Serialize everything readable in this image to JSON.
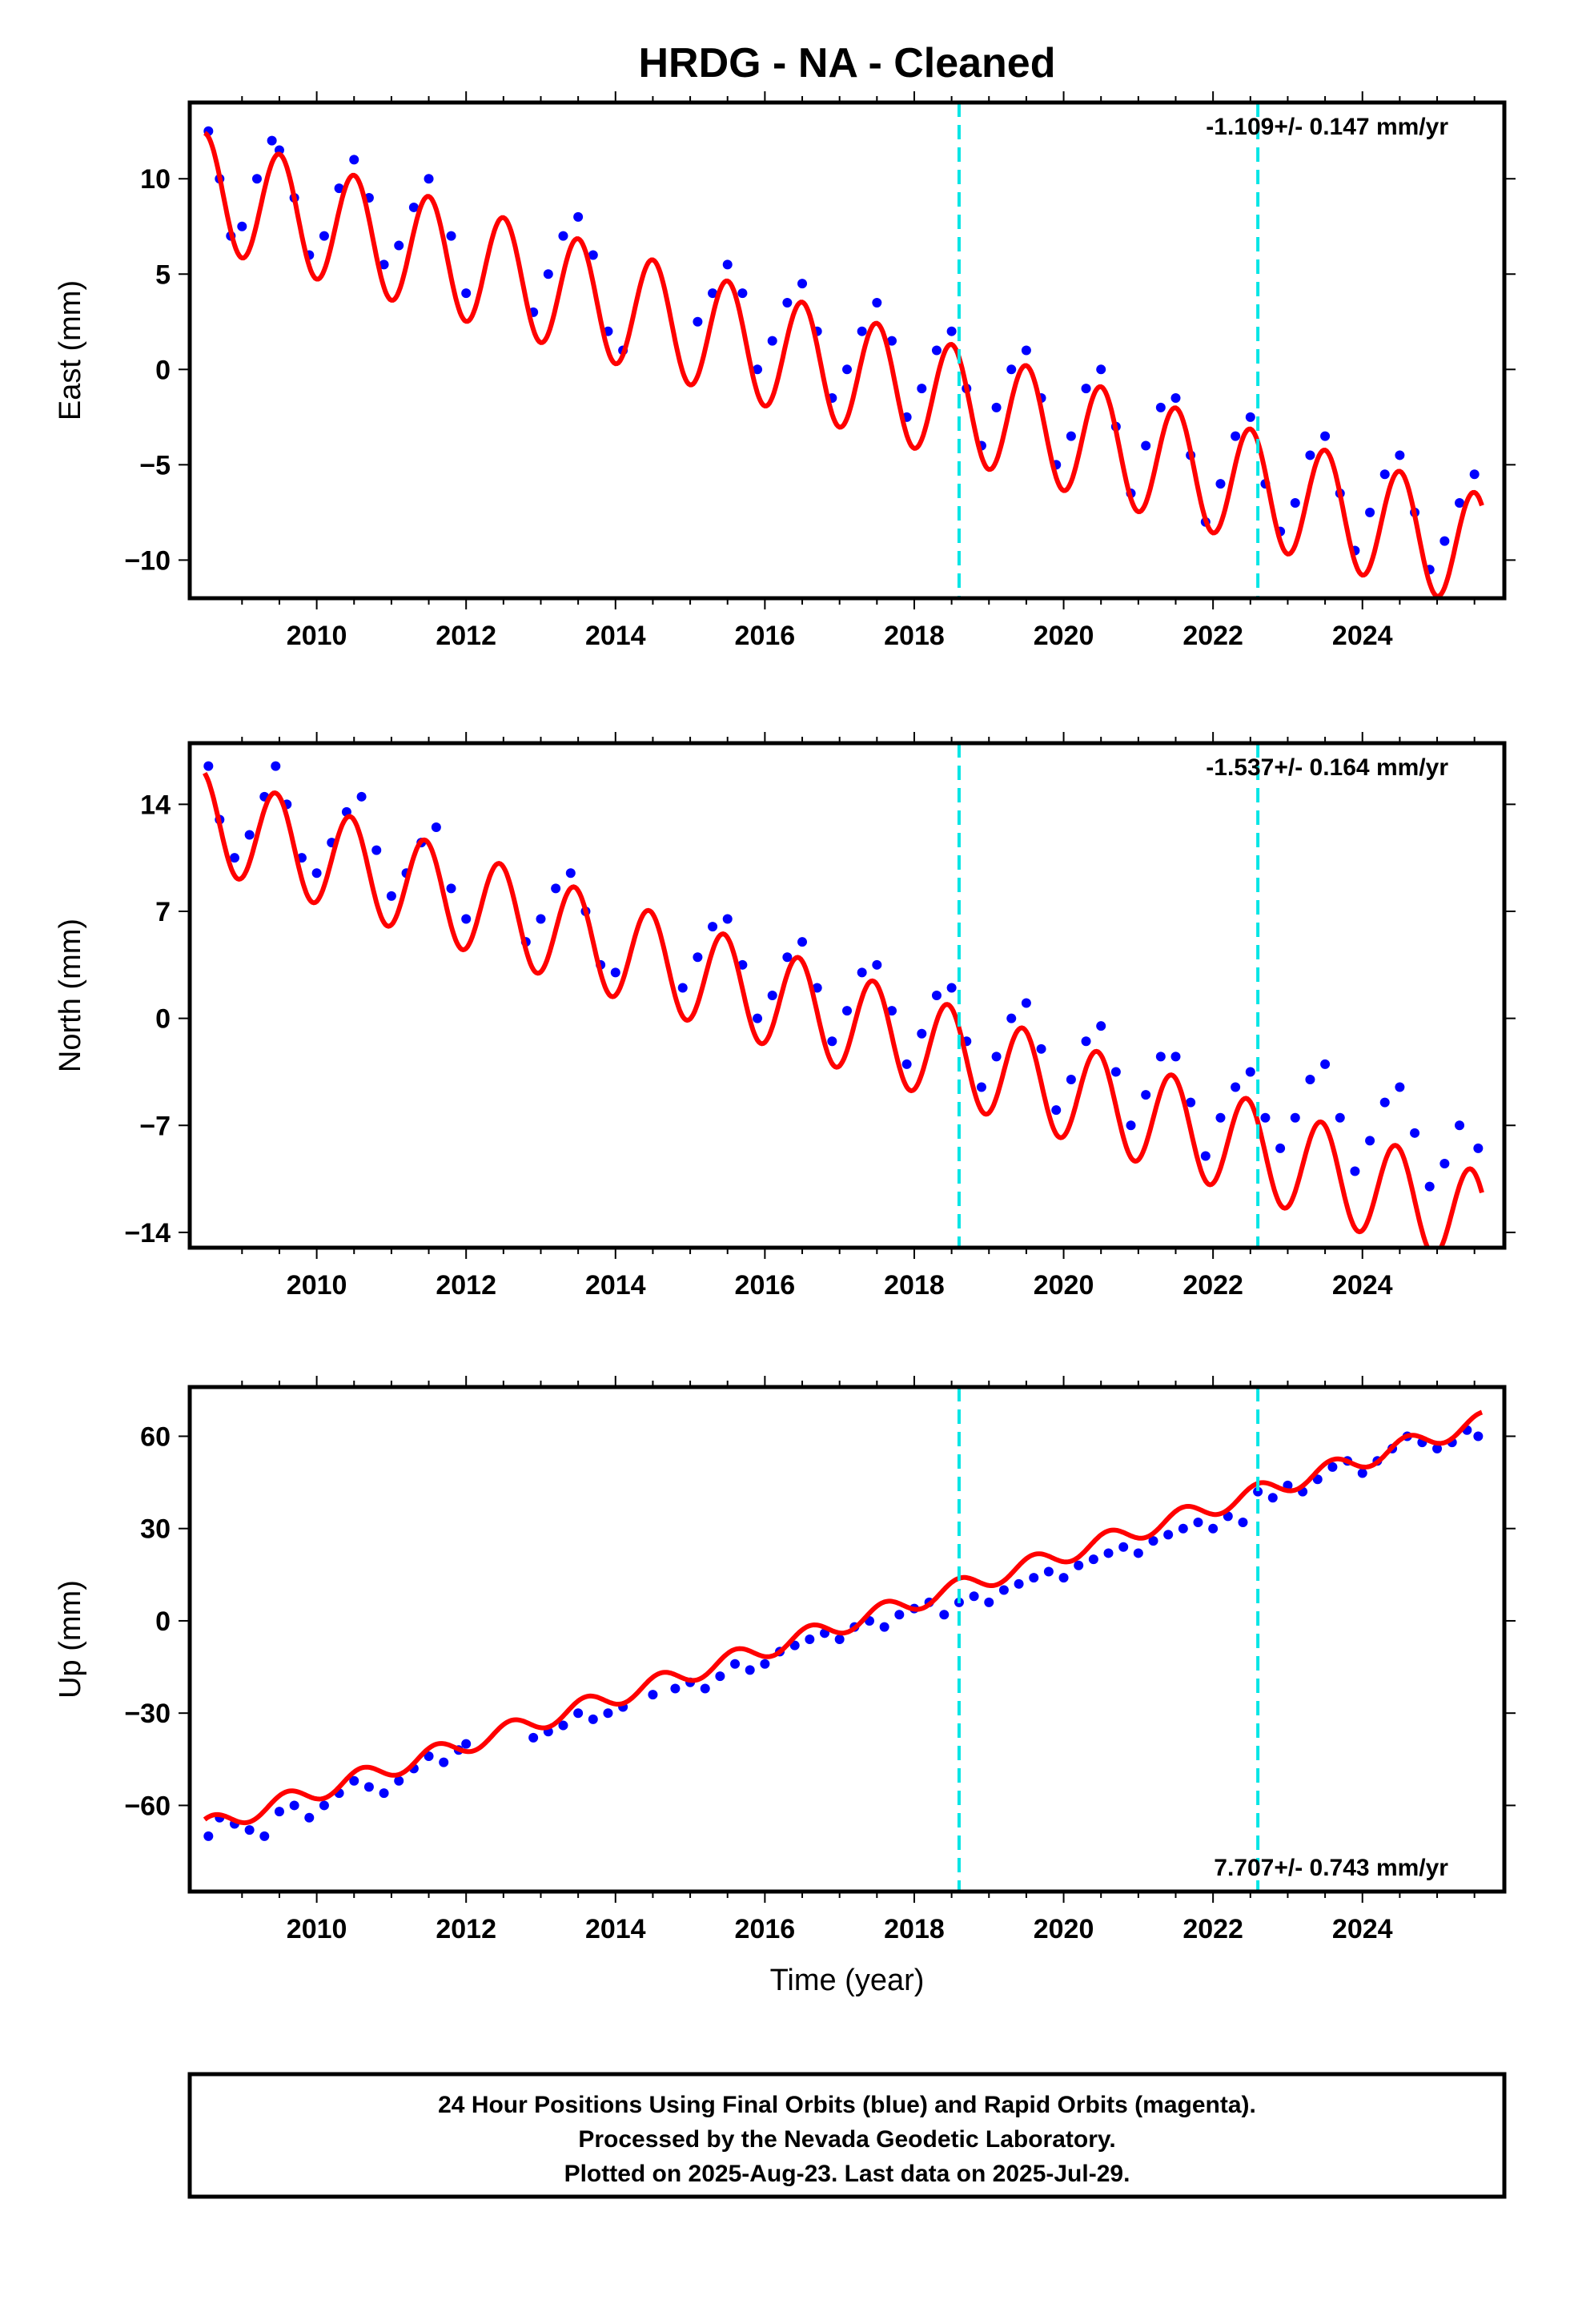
{
  "figure": {
    "title": "HRDG  - NA - Cleaned",
    "xlabel": "Time (year)"
  },
  "footer": {
    "lines": [
      "24 Hour Positions Using Final Orbits (blue) and Rapid Orbits (magenta).",
      "Processed by the Nevada Geodetic Laboratory.",
      "Plotted on 2025-Aug-23. Last data on 2025-Jul-29."
    ]
  },
  "chart_data": [
    {
      "type": "scatter",
      "component": "east",
      "ylabel": "East (mm)",
      "rate_label": "-1.109+/- 0.147 mm/yr",
      "rate_position": "top-right",
      "xlim": [
        2008.3,
        2025.9
      ],
      "ylim": [
        -12,
        14
      ],
      "xticks": [
        2010,
        2012,
        2014,
        2016,
        2018,
        2020,
        2022,
        2024
      ],
      "yticks": [
        -10,
        -5,
        0,
        5,
        10
      ],
      "ytick_labels": [
        "−10",
        "−5",
        "0",
        "5",
        "10"
      ],
      "grid": false,
      "breaks": [
        2018.6,
        2022.6
      ],
      "colors": {
        "observations": "#0000ff",
        "model": "#ff0000",
        "breaks": "#00e5e5"
      },
      "model": {
        "intercept_at_2008_5": 9.4,
        "rate_mm_per_yr": -1.109,
        "annual_amplitude": 3.0,
        "phase_year_peak": 0.5
      },
      "series": [
        {
          "role": "observations",
          "x": [
            2008.55,
            2008.7,
            2008.85,
            2009.0,
            2009.2,
            2009.4,
            2009.5,
            2009.7,
            2009.9,
            2010.1,
            2010.3,
            2010.5,
            2010.7,
            2010.9,
            2011.1,
            2011.3,
            2011.5,
            2011.8,
            2012.0,
            2012.9,
            2013.1,
            2013.3,
            2013.5,
            2013.7,
            2013.9,
            2014.1,
            2015.1,
            2015.3,
            2015.5,
            2015.7,
            2015.9,
            2016.1,
            2016.3,
            2016.5,
            2016.7,
            2016.9,
            2017.1,
            2017.3,
            2017.5,
            2017.7,
            2017.9,
            2018.1,
            2018.3,
            2018.5,
            2018.7,
            2018.9,
            2019.1,
            2019.3,
            2019.5,
            2019.7,
            2019.9,
            2020.1,
            2020.3,
            2020.5,
            2020.7,
            2020.9,
            2021.1,
            2021.3,
            2021.5,
            2021.7,
            2021.9,
            2022.1,
            2022.3,
            2022.5,
            2022.7,
            2022.9,
            2023.1,
            2023.3,
            2023.5,
            2023.7,
            2023.9,
            2024.1,
            2024.3,
            2024.5,
            2024.7,
            2024.9,
            2025.1,
            2025.3,
            2025.5
          ],
          "y": [
            12.5,
            10.0,
            7.0,
            7.5,
            10.0,
            12.0,
            11.5,
            9.0,
            6.0,
            7.0,
            9.5,
            11.0,
            9.0,
            5.5,
            6.5,
            8.5,
            10.0,
            7.0,
            4.0,
            3.0,
            5.0,
            7.0,
            8.0,
            6.0,
            2.0,
            1.0,
            2.5,
            4.0,
            5.5,
            4.0,
            0.0,
            1.5,
            3.5,
            4.5,
            2.0,
            -1.5,
            0.0,
            2.0,
            3.5,
            1.5,
            -2.5,
            -1.0,
            1.0,
            2.0,
            -1.0,
            -4.0,
            -2.0,
            0.0,
            1.0,
            -1.5,
            -5.0,
            -3.5,
            -1.0,
            0.0,
            -3.0,
            -6.5,
            -4.0,
            -2.0,
            -1.5,
            -4.5,
            -8.0,
            -6.0,
            -3.5,
            -2.5,
            -6.0,
            -8.5,
            -7.0,
            -4.5,
            -3.5,
            -6.5,
            -9.5,
            -7.5,
            -5.5,
            -4.5,
            -7.5,
            -10.5,
            -9.0,
            -7.0,
            -5.5
          ]
        }
      ]
    },
    {
      "type": "scatter",
      "component": "north",
      "ylabel": "North (mm)",
      "rate_label": "-1.537+/- 0.164 mm/yr",
      "rate_position": "top-right",
      "xlim": [
        2008.3,
        2025.9
      ],
      "ylim": [
        -15,
        18
      ],
      "xticks": [
        2010,
        2012,
        2014,
        2016,
        2018,
        2020,
        2022,
        2024
      ],
      "yticks": [
        -14,
        -7,
        0,
        7,
        14
      ],
      "ytick_labels": [
        "−14",
        "−7",
        "0",
        "7",
        "14"
      ],
      "grid": false,
      "breaks": [
        2018.6,
        2022.6
      ],
      "colors": {
        "observations": "#0000ff",
        "model": "#ff0000",
        "breaks": "#00e5e5"
      },
      "model": {
        "intercept_at_2008_5": 13.0,
        "rate_mm_per_yr": -1.537,
        "annual_amplitude": 3.2,
        "phase_year_peak": 0.45
      },
      "series": [
        {
          "role": "observations",
          "x": [
            2008.55,
            2008.7,
            2008.9,
            2009.1,
            2009.3,
            2009.45,
            2009.6,
            2009.8,
            2010.0,
            2010.2,
            2010.4,
            2010.6,
            2010.8,
            2011.0,
            2011.2,
            2011.4,
            2011.6,
            2011.8,
            2012.0,
            2012.8,
            2013.0,
            2013.2,
            2013.4,
            2013.6,
            2013.8,
            2014.0,
            2014.9,
            2015.1,
            2015.3,
            2015.5,
            2015.7,
            2015.9,
            2016.1,
            2016.3,
            2016.5,
            2016.7,
            2016.9,
            2017.1,
            2017.3,
            2017.5,
            2017.7,
            2017.9,
            2018.1,
            2018.3,
            2018.5,
            2018.7,
            2018.9,
            2019.1,
            2019.3,
            2019.5,
            2019.7,
            2019.9,
            2020.1,
            2020.3,
            2020.5,
            2020.7,
            2020.9,
            2021.1,
            2021.3,
            2021.5,
            2021.7,
            2021.9,
            2022.1,
            2022.3,
            2022.5,
            2022.7,
            2022.9,
            2023.1,
            2023.3,
            2023.5,
            2023.7,
            2023.9,
            2024.1,
            2024.3,
            2024.5,
            2024.7,
            2024.9,
            2025.1,
            2025.3,
            2025.55
          ],
          "y": [
            16.5,
            13.0,
            10.5,
            12.0,
            14.5,
            16.5,
            14.0,
            10.5,
            9.5,
            11.5,
            13.5,
            14.5,
            11.0,
            8.0,
            9.5,
            11.5,
            12.5,
            8.5,
            6.5,
            5.0,
            6.5,
            8.5,
            9.5,
            7.0,
            3.5,
            3.0,
            2.0,
            4.0,
            6.0,
            6.5,
            3.5,
            0.0,
            1.5,
            4.0,
            5.0,
            2.0,
            -1.5,
            0.5,
            3.0,
            3.5,
            0.5,
            -3.0,
            -1.0,
            1.5,
            2.0,
            -1.5,
            -4.5,
            -2.5,
            0.0,
            1.0,
            -2.0,
            -6.0,
            -4.0,
            -1.5,
            -0.5,
            -3.5,
            -7.0,
            -5.0,
            -2.5,
            -2.5,
            -5.5,
            -9.0,
            -6.5,
            -4.5,
            -3.5,
            -6.5,
            -8.5,
            -6.5,
            -4.0,
            -3.0,
            -6.5,
            -10.0,
            -8.0,
            -5.5,
            -4.5,
            -7.5,
            -11.0,
            -9.5,
            -7.0,
            -8.5
          ]
        }
      ]
    },
    {
      "type": "scatter",
      "component": "up",
      "ylabel": "Up (mm)",
      "rate_label": "7.707+/- 0.743 mm/yr",
      "rate_position": "bottom-right",
      "xlim": [
        2008.3,
        2025.9
      ],
      "ylim": [
        -88,
        76
      ],
      "xticks": [
        2010,
        2012,
        2014,
        2016,
        2018,
        2020,
        2022,
        2024
      ],
      "yticks": [
        -60,
        -30,
        0,
        30,
        60
      ],
      "ytick_labels": [
        "−60",
        "−30",
        "0",
        "30",
        "60"
      ],
      "grid": false,
      "breaks": [
        2018.6,
        2022.6
      ],
      "colors": {
        "observations": "#0000ff",
        "model": "#ff0000",
        "breaks": "#00e5e5"
      },
      "model": {
        "intercept_at_2008_5": -67.0,
        "rate_mm_per_yr": 7.707,
        "annual_amplitude": 3.0,
        "phase_year_peak": 0.6
      },
      "series": [
        {
          "role": "observations",
          "x": [
            2008.55,
            2008.7,
            2008.9,
            2009.1,
            2009.3,
            2009.5,
            2009.7,
            2009.9,
            2010.1,
            2010.3,
            2010.5,
            2010.7,
            2010.9,
            2011.1,
            2011.3,
            2011.5,
            2011.7,
            2011.9,
            2012.0,
            2012.9,
            2013.1,
            2013.3,
            2013.5,
            2013.7,
            2013.9,
            2014.1,
            2014.5,
            2014.8,
            2015.0,
            2015.2,
            2015.4,
            2015.6,
            2015.8,
            2016.0,
            2016.2,
            2016.4,
            2016.6,
            2016.8,
            2017.0,
            2017.2,
            2017.4,
            2017.6,
            2017.8,
            2018.0,
            2018.2,
            2018.4,
            2018.6,
            2018.8,
            2019.0,
            2019.2,
            2019.4,
            2019.6,
            2019.8,
            2020.0,
            2020.2,
            2020.4,
            2020.6,
            2020.8,
            2021.0,
            2021.2,
            2021.4,
            2021.6,
            2021.8,
            2022.0,
            2022.2,
            2022.4,
            2022.6,
            2022.8,
            2023.0,
            2023.2,
            2023.4,
            2023.6,
            2023.8,
            2024.0,
            2024.2,
            2024.4,
            2024.6,
            2024.8,
            2025.0,
            2025.2,
            2025.4,
            2025.55
          ],
          "y": [
            -70,
            -64,
            -66,
            -68,
            -70,
            -62,
            -60,
            -64,
            -60,
            -56,
            -52,
            -54,
            -56,
            -52,
            -48,
            -44,
            -46,
            -42,
            -40,
            -38,
            -36,
            -34,
            -30,
            -32,
            -30,
            -28,
            -24,
            -22,
            -20,
            -22,
            -18,
            -14,
            -16,
            -14,
            -10,
            -8,
            -6,
            -4,
            -6,
            -2,
            0,
            -2,
            2,
            4,
            6,
            2,
            6,
            8,
            6,
            10,
            12,
            14,
            16,
            14,
            18,
            20,
            22,
            24,
            22,
            26,
            28,
            30,
            32,
            30,
            34,
            32,
            42,
            40,
            44,
            42,
            46,
            50,
            52,
            48,
            52,
            56,
            60,
            58,
            56,
            58,
            62,
            60
          ]
        }
      ]
    }
  ]
}
